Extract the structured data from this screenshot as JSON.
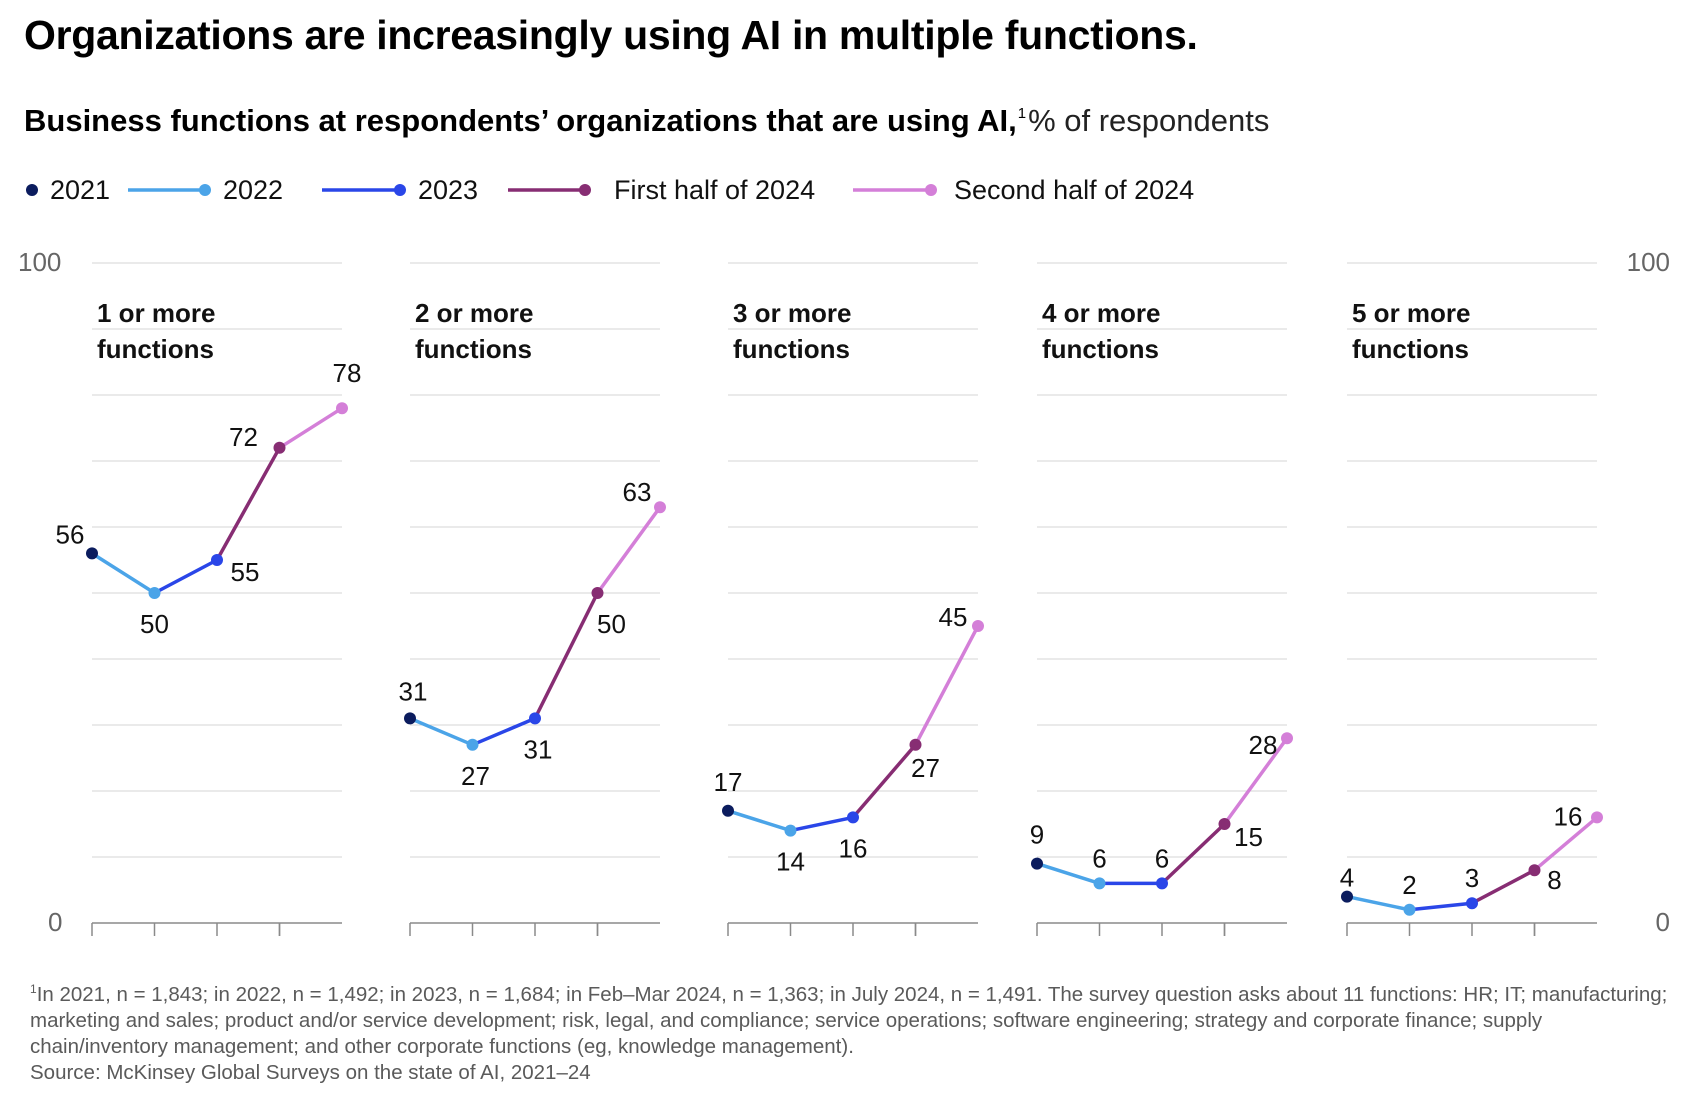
{
  "title": "Organizations are increasingly using AI in multiple functions.",
  "subtitle": {
    "main": "Business functions at respondents’ organizations that are using AI,",
    "footnote_marker": "1",
    "unit": "% of respondents"
  },
  "colors": {
    "2021": "#0b1c5e",
    "2022": "#4ba4e8",
    "2023": "#2a46e8",
    "First half of 2024": "#872d73",
    "Second half of 2024": "#d47fd8"
  },
  "chart_data": {
    "type": "line",
    "ylim": [
      0,
      100
    ],
    "yticks": [
      "0",
      "100"
    ],
    "x": [
      "2021",
      "2022",
      "2023",
      "First half of 2024",
      "Second half of 2024"
    ],
    "legend": [
      "2021",
      "2022",
      "2023",
      "First half of 2024",
      "Second half of 2024"
    ],
    "legend_placement": "top-left",
    "grid": true,
    "panels": [
      {
        "title_lines": [
          "1 or more",
          "functions"
        ],
        "values": [
          56,
          50,
          55,
          72,
          78
        ]
      },
      {
        "title_lines": [
          "2 or more",
          "functions"
        ],
        "values": [
          31,
          27,
          31,
          50,
          63
        ]
      },
      {
        "title_lines": [
          "3 or more",
          "functions"
        ],
        "values": [
          17,
          14,
          16,
          27,
          45
        ]
      },
      {
        "title_lines": [
          "4 or more",
          "functions"
        ],
        "values": [
          9,
          6,
          6,
          15,
          28
        ]
      },
      {
        "title_lines": [
          "5 or more",
          "functions"
        ],
        "values": [
          4,
          2,
          3,
          8,
          16
        ]
      }
    ]
  },
  "footnote": {
    "marker": "1",
    "text": "In 2021, n = 1,843; in 2022, n = 1,492; in 2023, n = 1,684; in Feb–Mar 2024, n = 1,363; in July 2024, n = 1,491. The survey question asks about 11 functions: HR; IT; manufacturing; marketing and sales; product and/or service development; risk, legal, and compliance; service operations; software engineering; strategy and corporate finance; supply chain/inventory management; and other corporate functions (eg, knowledge management).",
    "source": "Source: McKinsey Global Surveys on the state of AI, 2021–24"
  }
}
